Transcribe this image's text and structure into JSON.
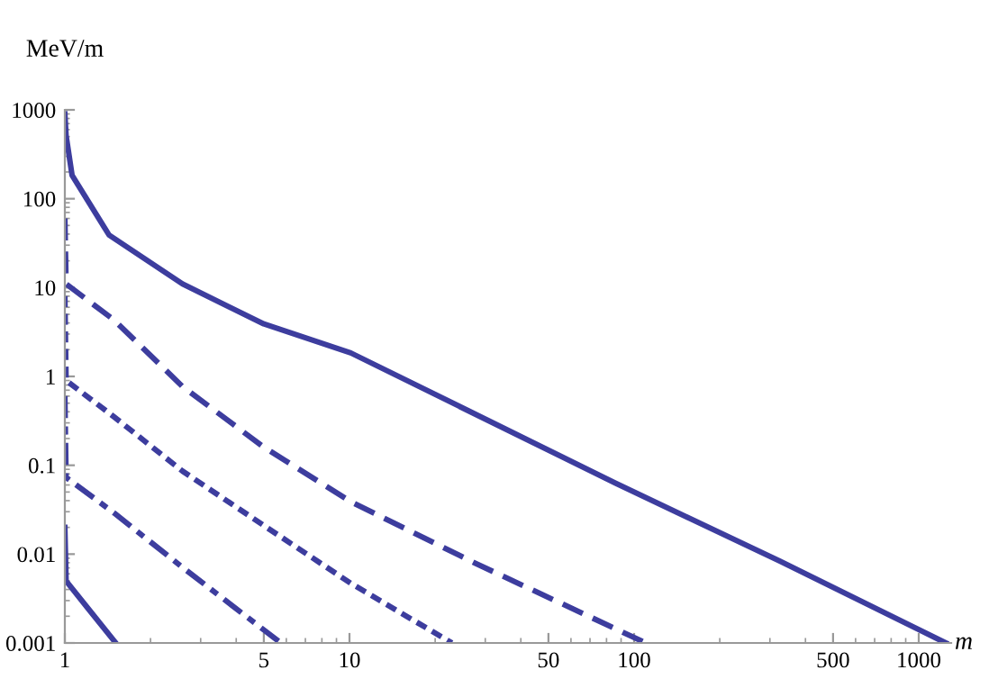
{
  "chart_data": {
    "type": "line",
    "ylabel": "MeV/m",
    "xlabel": "m",
    "log": "xy",
    "xlim": [
      1,
      1300
    ],
    "ylim": [
      0.001,
      1000
    ],
    "xticks": [
      1,
      5,
      10,
      50,
      100,
      500,
      1000
    ],
    "yticks": [
      {
        "value": 0.001,
        "label": "0.001"
      },
      {
        "value": 0.01,
        "label": "0.01"
      },
      {
        "value": 0.1,
        "label": "0.1"
      },
      1,
      10,
      100,
      1000
    ],
    "grid": false,
    "legend": false,
    "marker": "none",
    "series": [
      {
        "color": "#3d3d9e",
        "line_style": "solid",
        "x": [
          1,
          1.01,
          1.06,
          1.43,
          2.59,
          5,
          10.1,
          86,
          326,
          1245
        ],
        "values": [
          900,
          515,
          184,
          39,
          11,
          3.9,
          1.84,
          0.063,
          0.0083,
          0.001
        ]
      },
      {
        "color": "#3d3d9e",
        "line_style": "dashed",
        "x": [
          1,
          1.01,
          1.49,
          2.59,
          5,
          10.1,
          27.9,
          110
        ],
        "values": [
          60,
          11,
          4.3,
          0.77,
          0.16,
          0.039,
          0.0078,
          0.001
        ]
      },
      {
        "color": "#3d3d9e",
        "line_style": "dotted",
        "x": [
          1,
          1.01,
          1.49,
          2.59,
          5,
          10.1,
          22.9
        ],
        "values": [
          8,
          0.9,
          0.35,
          0.086,
          0.021,
          0.0047,
          0.001
        ]
      },
      {
        "color": "#3d3d9e",
        "line_style": "dashdot",
        "x": [
          1,
          1.01,
          1.49,
          2.59,
          5.74
        ],
        "values": [
          0.6,
          0.073,
          0.029,
          0.0071,
          0.001
        ]
      },
      {
        "color": "#3d3d9e",
        "line_style": "solid",
        "x": [
          1,
          1.01,
          1.2,
          1.51
        ],
        "values": [
          0.02,
          0.005,
          0.0025,
          0.001
        ]
      }
    ]
  }
}
